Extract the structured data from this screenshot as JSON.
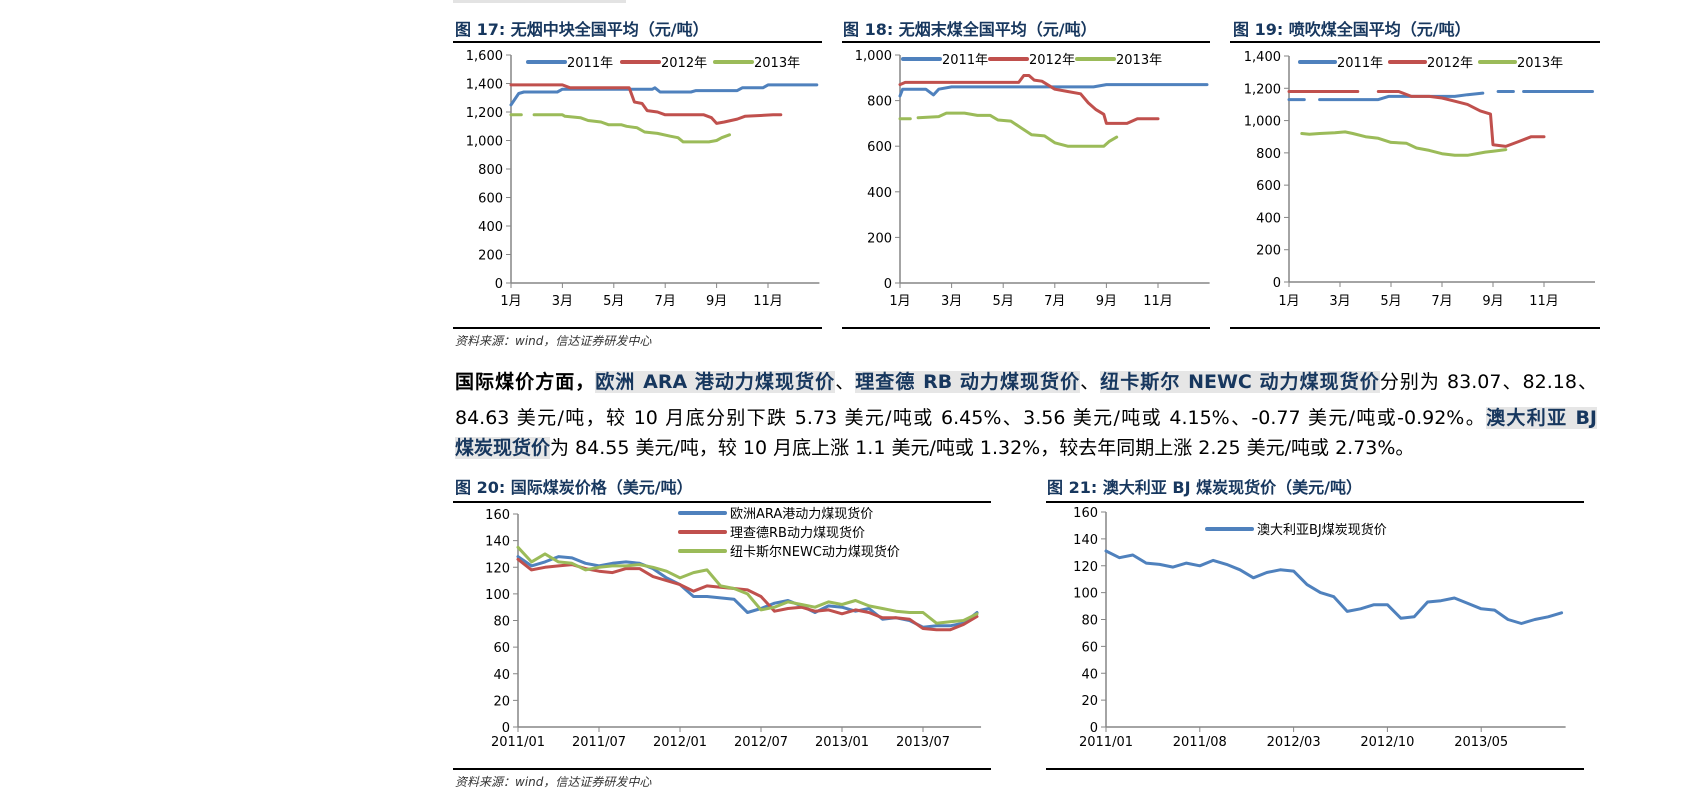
{
  "charts_top": [
    {
      "title": "图 17:  无烟中块全国平均（元/吨）"
    },
    {
      "title": "图 18:  无烟末煤全国平均（元/吨）"
    },
    {
      "title": "图 19:  喷吹煤全国平均（元/吨）"
    }
  ],
  "source_top": "资料来源：wind，信达证券研发中心",
  "paragraph": {
    "lines": [
      [
        {
          "t": "国际煤价方面，",
          "s": "lead"
        },
        {
          "t": "欧洲 ARA 港动力煤现货价",
          "s": "hl"
        },
        {
          "t": "、",
          "s": ""
        },
        {
          "t": "理查德 RB 动力煤现货价",
          "s": "hl"
        },
        {
          "t": "、",
          "s": ""
        },
        {
          "t": "纽卡斯尔 NEWC 动力煤现货价",
          "s": "hl"
        },
        {
          "t": "分别为 83.07、82.18、",
          "s": ""
        }
      ],
      [
        {
          "t": "84.63 美元/吨，较 10 月底分别下跌 5.73 美元/吨或 6.45%、3.56 美元/吨或 4.15%、-0.77 美元/吨或-0.92%。",
          "s": ""
        },
        {
          "t": "澳大利亚 BJ",
          "s": "hl"
        }
      ],
      [
        {
          "t": "煤炭现货价",
          "s": "hl"
        },
        {
          "t": "为 84.55 美元/吨，较 10 月底上涨 1.1 美元/吨或 1.32%，较去年同期上涨 2.25 美元/吨或 2.73%。",
          "s": ""
        }
      ]
    ]
  },
  "charts_bottom": [
    {
      "title": "图 20:  国际煤炭价格（美元/吨）"
    },
    {
      "title": "图 21:  澳大利亚 BJ 煤炭现货价（美元/吨）"
    }
  ],
  "source_bottom": "资料来源：wind，信达证券研发中心",
  "chart_data": [
    {
      "type": "line",
      "title": "图 17:  无烟中块全国平均（元/吨）",
      "ylim": [
        0,
        1600
      ],
      "yticks": [
        0,
        200,
        400,
        600,
        800,
        1000,
        1200,
        1400,
        1600
      ],
      "ytick_labels": [
        "0",
        "200",
        "400",
        "600",
        "800",
        "1,000",
        "1,200",
        "1,400",
        "1,600"
      ],
      "xunit": "month",
      "xlim": [
        1,
        13
      ],
      "xticks": [
        1,
        3,
        5,
        7,
        9,
        11
      ],
      "xtick_labels": [
        "1月",
        "3月",
        "5月",
        "7月",
        "9月",
        "11月"
      ],
      "legend": "top",
      "grid": false,
      "series": [
        {
          "name": "2011年",
          "color": "#4F81BD",
          "points": [
            [
              1,
              1250
            ],
            [
              1.3,
              1330
            ],
            [
              1.5,
              1340
            ],
            [
              2.8,
              1340
            ],
            [
              3,
              1360
            ],
            [
              6.5,
              1360
            ],
            [
              6.6,
              1370
            ],
            [
              6.8,
              1340
            ],
            [
              8,
              1340
            ],
            [
              8.2,
              1350
            ],
            [
              9.8,
              1350
            ],
            [
              10,
              1370
            ],
            [
              10.8,
              1370
            ],
            [
              11,
              1390
            ],
            [
              12.9,
              1390
            ]
          ]
        },
        {
          "name": "2012年",
          "color": "#C0504D",
          "points": [
            [
              1,
              1390
            ],
            [
              3,
              1390
            ],
            [
              3.3,
              1370
            ],
            [
              5.6,
              1370
            ],
            [
              5.8,
              1270
            ],
            [
              6.1,
              1260
            ],
            [
              6.3,
              1210
            ],
            [
              6.7,
              1200
            ],
            [
              7,
              1180
            ],
            [
              8.5,
              1180
            ],
            [
              8.8,
              1160
            ],
            [
              9,
              1120
            ],
            [
              9.3,
              1130
            ],
            [
              9.8,
              1150
            ],
            [
              10.1,
              1170
            ],
            [
              11.2,
              1180
            ],
            [
              11.5,
              1180
            ]
          ]
        },
        {
          "name": "2013年",
          "color": "#9BBB59",
          "points": [
            [
              1,
              1180
            ],
            [
              1.4,
              1180
            ],
            null,
            [
              1.9,
              1180
            ],
            [
              3,
              1180
            ],
            [
              3.1,
              1170
            ],
            [
              3.7,
              1160
            ],
            [
              4,
              1140
            ],
            [
              4.5,
              1130
            ],
            [
              4.8,
              1110
            ],
            [
              5.3,
              1110
            ],
            [
              5.5,
              1100
            ],
            [
              5.9,
              1090
            ],
            [
              6.2,
              1060
            ],
            [
              6.7,
              1050
            ],
            [
              7.2,
              1030
            ],
            [
              7.5,
              1020
            ],
            [
              7.7,
              990
            ],
            [
              8.7,
              990
            ],
            [
              9,
              1000
            ],
            [
              9.2,
              1020
            ],
            [
              9.5,
              1040
            ]
          ]
        }
      ]
    },
    {
      "type": "line",
      "title": "图 18:  无烟末煤全国平均（元/吨）",
      "ylim": [
        0,
        1000
      ],
      "yticks": [
        0,
        200,
        400,
        600,
        800,
        1000
      ],
      "ytick_labels": [
        "0",
        "200",
        "400",
        "600",
        "800",
        "1,000"
      ],
      "xunit": "month",
      "xlim": [
        1,
        13
      ],
      "xticks": [
        1,
        3,
        5,
        7,
        9,
        11
      ],
      "xtick_labels": [
        "1月",
        "3月",
        "5月",
        "7月",
        "9月",
        "11月"
      ],
      "legend": "top",
      "grid": false,
      "series": [
        {
          "name": "2011年",
          "color": "#4F81BD",
          "points": [
            [
              1,
              820
            ],
            [
              1.1,
              850
            ],
            [
              2,
              850
            ],
            [
              2.3,
              825
            ],
            [
              2.5,
              850
            ],
            [
              3,
              860
            ],
            [
              8.5,
              860
            ],
            [
              9,
              870
            ],
            [
              12.9,
              870
            ]
          ]
        },
        {
          "name": "2012年",
          "color": "#C0504D",
          "points": [
            [
              1,
              870
            ],
            [
              1.2,
              880
            ],
            [
              5.6,
              880
            ],
            [
              5.8,
              910
            ],
            [
              6,
              910
            ],
            [
              6.2,
              890
            ],
            [
              6.5,
              885
            ],
            [
              7,
              850
            ],
            [
              7.5,
              840
            ],
            [
              8,
              830
            ],
            [
              8.3,
              790
            ],
            [
              8.6,
              760
            ],
            [
              8.9,
              740
            ],
            [
              9,
              700
            ],
            [
              9.8,
              700
            ],
            [
              10.2,
              720
            ],
            [
              11,
              720
            ]
          ]
        },
        {
          "name": "2013年",
          "color": "#9BBB59",
          "points": [
            [
              1,
              720
            ],
            [
              1.4,
              720
            ],
            null,
            [
              1.7,
              725
            ],
            [
              2.5,
              730
            ],
            [
              2.8,
              745
            ],
            [
              3.5,
              745
            ],
            [
              4,
              735
            ],
            [
              4.5,
              735
            ],
            [
              4.8,
              715
            ],
            [
              5.3,
              710
            ],
            [
              5.7,
              680
            ],
            [
              6.1,
              650
            ],
            [
              6.6,
              645
            ],
            [
              7,
              615
            ],
            [
              7.5,
              600
            ],
            [
              8.9,
              600
            ],
            [
              9.1,
              620
            ],
            [
              9.4,
              640
            ]
          ]
        }
      ]
    },
    {
      "type": "line",
      "title": "图 19:  喷吹煤全国平均（元/吨）",
      "ylim": [
        0,
        1400
      ],
      "yticks": [
        0,
        200,
        400,
        600,
        800,
        1000,
        1200,
        1400
      ],
      "ytick_labels": [
        "0",
        "200",
        "400",
        "600",
        "800",
        "1,000",
        "1,200",
        "1,400"
      ],
      "xunit": "month",
      "xlim": [
        1,
        13
      ],
      "xticks": [
        1,
        3,
        5,
        7,
        9,
        11
      ],
      "xtick_labels": [
        "1月",
        "3月",
        "5月",
        "7月",
        "9月",
        "11月"
      ],
      "legend": "top",
      "grid": false,
      "series": [
        {
          "name": "2011年",
          "color": "#4F81BD",
          "points": [
            [
              1,
              1130
            ],
            [
              1.6,
              1130
            ],
            null,
            [
              2.2,
              1130
            ],
            [
              4.5,
              1130
            ],
            [
              4.9,
              1150
            ],
            [
              7.5,
              1150
            ],
            [
              8,
              1160
            ],
            [
              8.6,
              1170
            ],
            null,
            [
              9.2,
              1180
            ],
            [
              9.8,
              1180
            ],
            null,
            [
              10.2,
              1180
            ],
            [
              12.9,
              1180
            ]
          ]
        },
        {
          "name": "2012年",
          "color": "#C0504D",
          "points": [
            [
              1,
              1180
            ],
            [
              3.7,
              1180
            ],
            null,
            [
              4.5,
              1180
            ],
            [
              5.3,
              1180
            ],
            [
              5.8,
              1150
            ],
            [
              6.5,
              1150
            ],
            [
              7,
              1140
            ],
            [
              7.5,
              1120
            ],
            [
              8,
              1100
            ],
            [
              8.5,
              1060
            ],
            [
              8.9,
              1040
            ],
            [
              9,
              850
            ],
            [
              9.5,
              840
            ],
            [
              10,
              870
            ],
            [
              10.5,
              900
            ],
            [
              11,
              900
            ]
          ]
        },
        {
          "name": "2013年",
          "color": "#9BBB59",
          "points": [
            [
              1.5,
              920
            ],
            [
              1.8,
              915
            ],
            [
              2.2,
              920
            ],
            [
              2.8,
              925
            ],
            [
              3.2,
              930
            ],
            [
              3.5,
              920
            ],
            [
              4,
              900
            ],
            [
              4.5,
              890
            ],
            [
              5,
              865
            ],
            [
              5.6,
              860
            ],
            [
              6,
              830
            ],
            [
              6.5,
              815
            ],
            [
              7,
              795
            ],
            [
              7.5,
              785
            ],
            [
              8,
              785
            ],
            [
              8.7,
              805
            ],
            [
              9,
              810
            ],
            [
              9.5,
              820
            ]
          ]
        }
      ]
    },
    {
      "type": "line",
      "title": "图 20:  国际煤炭价格（美元/吨）",
      "ylim": [
        0,
        160
      ],
      "yticks": [
        0,
        20,
        40,
        60,
        80,
        100,
        120,
        140,
        160
      ],
      "ytick_labels": [
        "0",
        "20",
        "40",
        "60",
        "80",
        "100",
        "120",
        "140",
        "160"
      ],
      "xunit": "date",
      "xticks": [
        "2011-01",
        "2011-07",
        "2012-01",
        "2012-07",
        "2013-01",
        "2013-07"
      ],
      "xtick_labels": [
        "2011/01",
        "2011/07",
        "2012/01",
        "2012/07",
        "2013/01",
        "2013/07"
      ],
      "legend": "top-right",
      "grid": false,
      "x_start": "2011-01",
      "x_end": "2013-11",
      "series": [
        {
          "name": "欧洲ARA港动力煤现货价",
          "color": "#4F81BD",
          "values": [
            128,
            121,
            124,
            128,
            127,
            123,
            121,
            123,
            124,
            123,
            119,
            112,
            107,
            98,
            98,
            97,
            96,
            86,
            89,
            93,
            95,
            91,
            86,
            91,
            90,
            87,
            89,
            81,
            82,
            80,
            75,
            76,
            76,
            78,
            86
          ]
        },
        {
          "name": "理查德RB动力煤现货价",
          "color": "#C0504D",
          "values": [
            126,
            118,
            120,
            121,
            122,
            119,
            117,
            116,
            119,
            119,
            113,
            110,
            107,
            102,
            106,
            105,
            104,
            103,
            98,
            87,
            89,
            90,
            87,
            88,
            85,
            88,
            86,
            82,
            82,
            81,
            74,
            73,
            73,
            77,
            83
          ]
        },
        {
          "name": "纽卡斯尔NEWC动力煤现货价",
          "color": "#9BBB59",
          "values": [
            135,
            124,
            130,
            124,
            123,
            118,
            120,
            121,
            121,
            122,
            120,
            117,
            112,
            116,
            118,
            106,
            104,
            100,
            88,
            90,
            94,
            92,
            90,
            94,
            92,
            95,
            91,
            89,
            87,
            86,
            86,
            78,
            79,
            80,
            85
          ]
        }
      ]
    },
    {
      "type": "line",
      "title": "图 21:  澳大利亚 BJ 煤炭现货价（美元/吨）",
      "ylim": [
        0,
        160
      ],
      "yticks": [
        0,
        20,
        40,
        60,
        80,
        100,
        120,
        140,
        160
      ],
      "ytick_labels": [
        "0",
        "20",
        "40",
        "60",
        "80",
        "100",
        "120",
        "140",
        "160"
      ],
      "xunit": "date",
      "xticks": [
        "2011-01",
        "2011-08",
        "2012-03",
        "2012-10",
        "2013-05"
      ],
      "xtick_labels": [
        "2011/01",
        "2011/08",
        "2012/03",
        "2012/10",
        "2013/05"
      ],
      "legend": "top-right",
      "grid": false,
      "x_start": "2011-01",
      "x_end": "2013-11",
      "series": [
        {
          "name": "澳大利亚BJ煤炭现货价",
          "color": "#4F81BD",
          "values": [
            131,
            126,
            128,
            122,
            121,
            119,
            122,
            120,
            124,
            121,
            117,
            111,
            115,
            117,
            116,
            106,
            100,
            97,
            86,
            88,
            91,
            91,
            81,
            82,
            93,
            94,
            96,
            92,
            88,
            87,
            80,
            77,
            80,
            82,
            85
          ]
        }
      ]
    }
  ]
}
